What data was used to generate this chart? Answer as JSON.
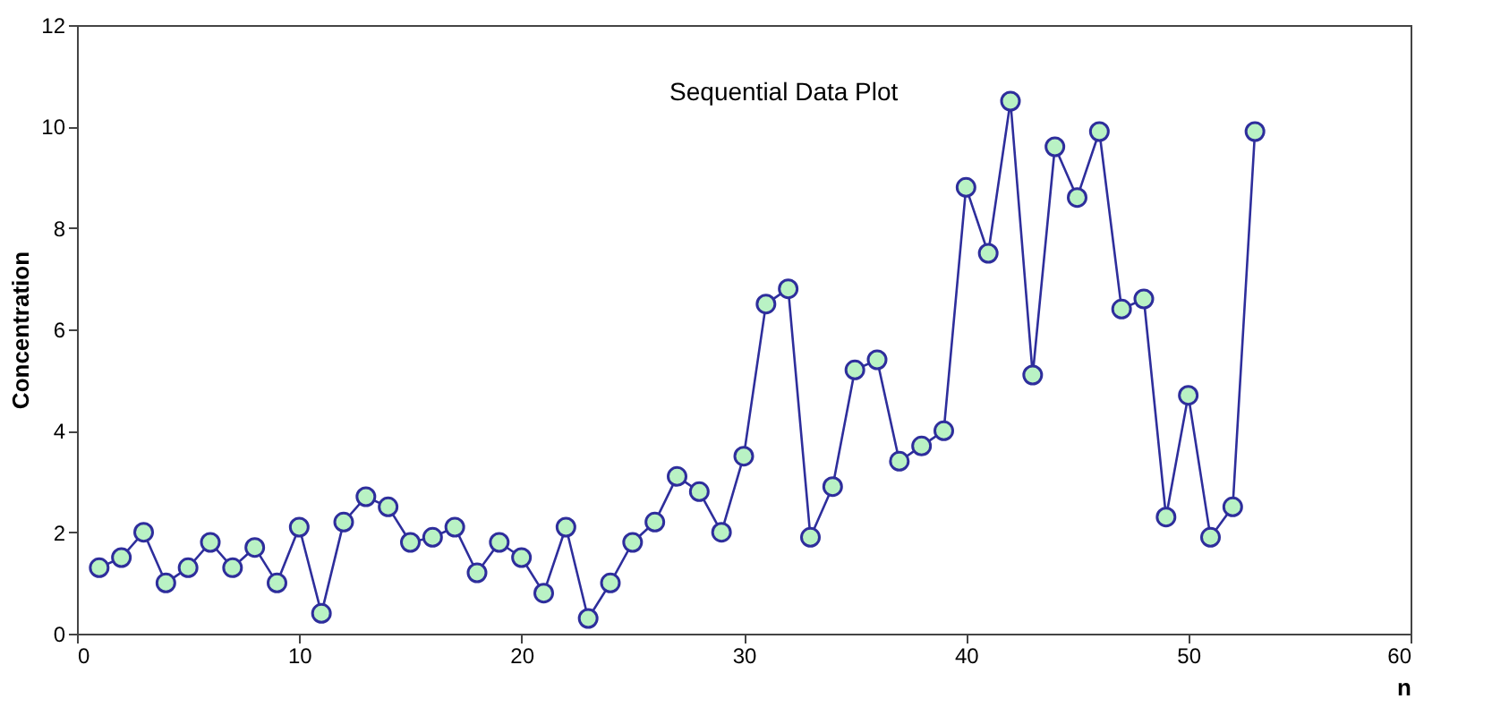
{
  "chart_data": {
    "type": "line",
    "title": "Sequential Data Plot",
    "xlabel": "n",
    "ylabel": "Concentration",
    "x": [
      1,
      2,
      3,
      4,
      5,
      6,
      7,
      8,
      9,
      10,
      11,
      12,
      13,
      14,
      15,
      16,
      17,
      18,
      19,
      20,
      21,
      22,
      23,
      24,
      25,
      26,
      27,
      28,
      29,
      30,
      31,
      32,
      33,
      34,
      35,
      36,
      37,
      38,
      39,
      40,
      41,
      42,
      43,
      44,
      45,
      46,
      47,
      48,
      49,
      50,
      51,
      52,
      53
    ],
    "series": [
      {
        "color": "#2e2e9c",
        "values": [
          1.3,
          1.5,
          2.0,
          1.0,
          1.3,
          1.8,
          1.3,
          1.7,
          1.0,
          2.1,
          0.4,
          2.2,
          2.7,
          2.5,
          1.8,
          1.9,
          2.1,
          1.2,
          1.8,
          1.5,
          0.8,
          2.1,
          0.3,
          1.0,
          1.8,
          2.2,
          3.1,
          2.8,
          2.0,
          3.5,
          6.5,
          6.8,
          1.9,
          2.9,
          5.2,
          5.4,
          3.4,
          3.7,
          4.0,
          8.8,
          7.5,
          10.5,
          5.1,
          9.6,
          8.6,
          9.9,
          6.4,
          6.6,
          2.3,
          4.7,
          1.9,
          2.5,
          9.9
        ]
      }
    ],
    "xlim": [
      0,
      60
    ],
    "xticks": [
      0,
      10,
      20,
      30,
      40,
      50,
      60
    ],
    "ylim": [
      0,
      12
    ],
    "yticks": [
      0,
      2,
      4,
      6,
      8,
      10,
      12
    ],
    "grid": false,
    "legend": false,
    "marker": "circle",
    "line_style": "solid"
  }
}
